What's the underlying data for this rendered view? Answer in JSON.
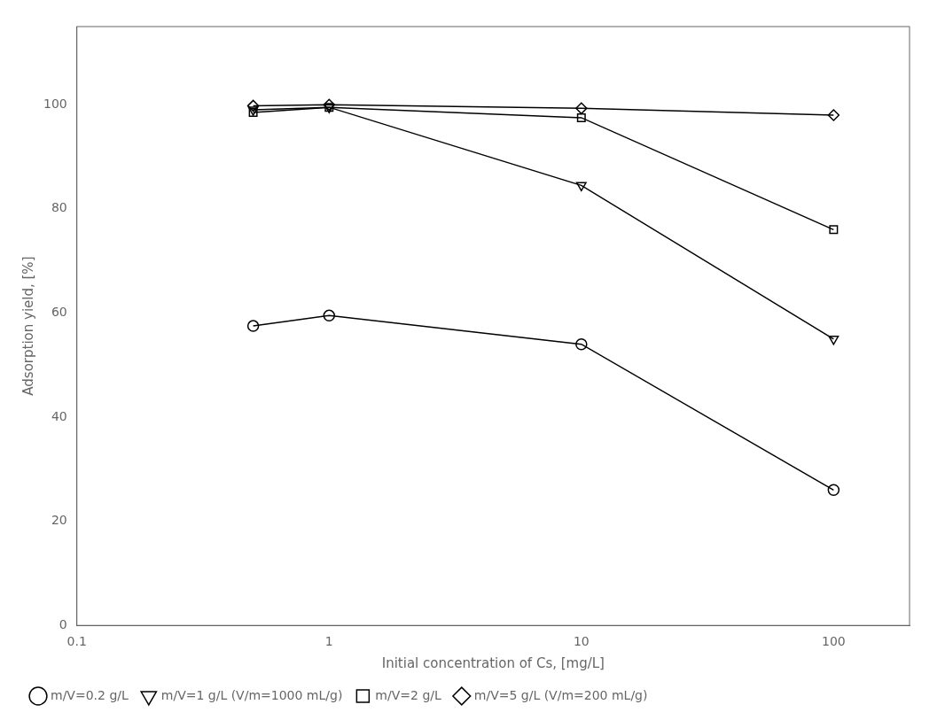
{
  "chart_data": {
    "type": "line",
    "x": [
      0.5,
      1,
      10,
      100
    ],
    "series": [
      {
        "name": "m/V=0.2 g/L",
        "color": "black",
        "marker": "circle",
        "values": [
          57.5,
          59.5,
          54.0,
          26.0
        ]
      },
      {
        "name": "m/V=1 g/L (V/m=1000 mL/g)",
        "color": "black",
        "marker": "triangle_down",
        "values": [
          99.0,
          99.5,
          84.5,
          55.0
        ]
      },
      {
        "name": "m/V=2 g/L",
        "color": "black",
        "marker": "square",
        "values": [
          98.5,
          99.5,
          97.5,
          76.0
        ]
      },
      {
        "name": "m/V=5 g/L (V/m=200 mL/g)",
        "color": "black",
        "marker": "diamond",
        "values": [
          99.8,
          100.0,
          99.3,
          98.0
        ]
      }
    ],
    "xlabel": "Initial concentration of Cs, [mg/L]",
    "ylabel": "Adsorption yield, [%]",
    "xlim": [
      0.1,
      200
    ],
    "ylim": [
      0,
      115
    ],
    "xticks": [
      0.1,
      1,
      10,
      100
    ],
    "yticks": [
      0,
      20,
      40,
      60,
      80,
      100
    ],
    "log": "x",
    "grid": false,
    "legend": "lower left"
  }
}
